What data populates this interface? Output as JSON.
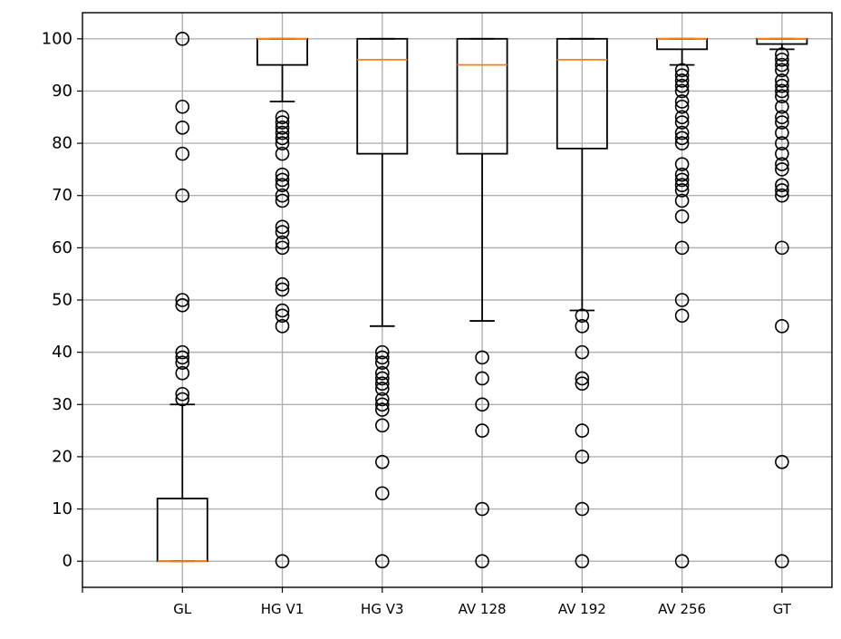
{
  "chart_data": {
    "type": "box",
    "title": "",
    "xlabel": "",
    "ylabel": "",
    "ylim": [
      -5,
      105
    ],
    "yticks": [
      "0",
      "10",
      "20",
      "30",
      "40",
      "50",
      "60",
      "70",
      "80",
      "90",
      "100"
    ],
    "grid": true,
    "median_color": "#ff7f0e",
    "box_color": "#000000",
    "grid_color": "#b0b0b0",
    "categories": [
      "GL",
      "HG V1",
      "HG V3",
      "AV 128",
      "AV 192",
      "AV 256",
      "GT"
    ],
    "boxes": [
      {
        "name": "GL",
        "whisker_low": 0,
        "q1": 0,
        "median": 0,
        "q3": 12,
        "whisker_high": 30,
        "outliers": [
          31,
          32,
          36,
          38,
          39,
          40,
          49,
          50,
          70,
          78,
          83,
          87,
          100
        ]
      },
      {
        "name": "HG V1",
        "whisker_low": 88,
        "q1": 95,
        "median": 100,
        "q3": 100,
        "whisker_high": 100,
        "outliers": [
          0,
          45,
          47,
          48,
          52,
          53,
          60,
          61,
          63,
          64,
          69,
          70,
          72,
          73,
          74,
          78,
          80,
          81,
          82,
          83,
          84,
          85
        ]
      },
      {
        "name": "HG V3",
        "whisker_low": 45,
        "q1": 78,
        "median": 96,
        "q3": 100,
        "whisker_high": 100,
        "outliers": [
          0,
          13,
          19,
          26,
          29,
          30,
          31,
          33,
          34,
          35,
          36,
          38,
          39,
          40
        ]
      },
      {
        "name": "AV 128",
        "whisker_low": 46,
        "q1": 78,
        "median": 95,
        "q3": 100,
        "whisker_high": 100,
        "outliers": [
          0,
          10,
          25,
          30,
          35,
          39
        ]
      },
      {
        "name": "AV 192",
        "whisker_low": 48,
        "q1": 79,
        "median": 96,
        "q3": 100,
        "whisker_high": 100,
        "outliers": [
          0,
          10,
          20,
          25,
          34,
          35,
          40,
          45,
          47
        ]
      },
      {
        "name": "AV 256",
        "whisker_low": 95,
        "q1": 98,
        "median": 100,
        "q3": 100,
        "whisker_high": 100,
        "outliers": [
          0,
          47,
          50,
          60,
          66,
          69,
          71,
          72,
          73,
          74,
          76,
          80,
          81,
          82,
          84,
          85,
          87,
          88,
          90,
          91,
          92,
          93,
          94
        ]
      },
      {
        "name": "GT",
        "whisker_low": 98,
        "q1": 99,
        "median": 100,
        "q3": 100,
        "whisker_high": 100,
        "outliers": [
          0,
          19,
          45,
          60,
          70,
          71,
          72,
          75,
          76,
          78,
          80,
          82,
          84,
          85,
          87,
          89,
          90,
          91,
          92,
          94,
          95,
          96,
          97
        ]
      }
    ]
  }
}
